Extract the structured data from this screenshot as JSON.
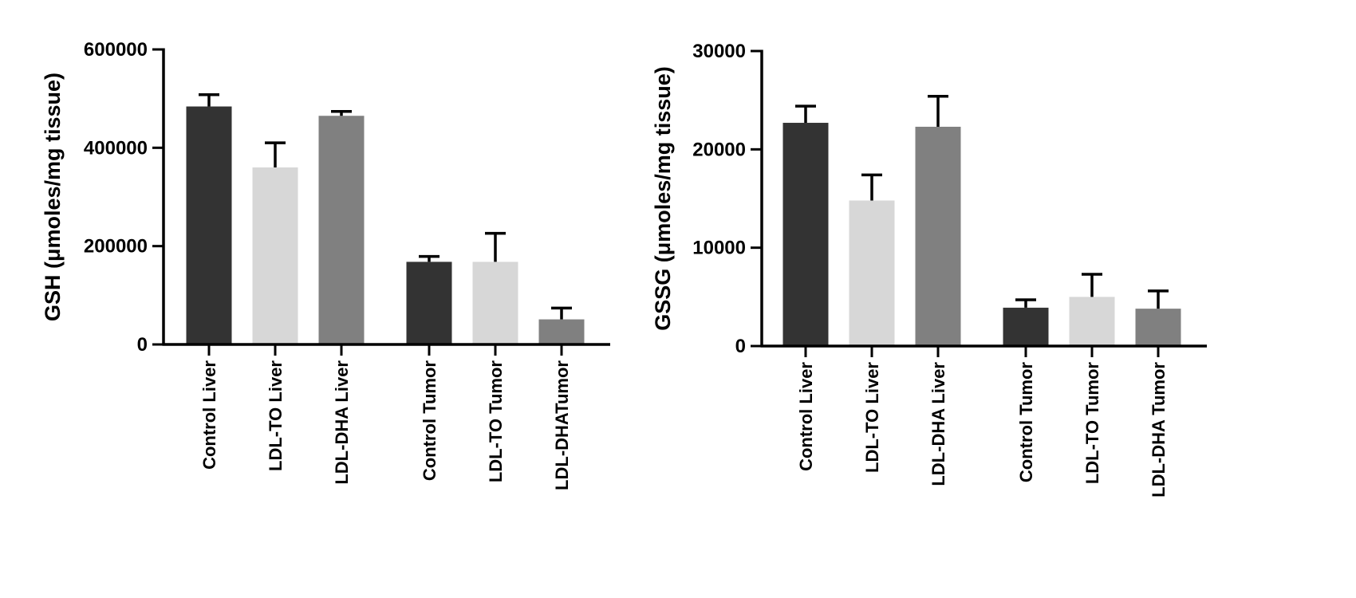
{
  "chart_data": [
    {
      "type": "bar",
      "ylabel": "GSH  (μmoles/mg tissue)",
      "ylim": [
        0,
        600000
      ],
      "yticks": [
        "0",
        "200000",
        "400000",
        "600000"
      ],
      "categories": [
        "Control Liver",
        "LDL-TO Liver",
        "LDL-DHA Liver",
        "Control Tumor",
        "LDL-TO Tumor",
        "LDL-DHATumor"
      ],
      "values": [
        484000,
        360000,
        465000,
        168000,
        168000,
        51000
      ],
      "errors": [
        24000,
        50000,
        9000,
        11000,
        58000,
        23000
      ],
      "colors": [
        "#333333",
        "#d7d7d7",
        "#808080",
        "#333333",
        "#d7d7d7",
        "#808080"
      ],
      "grid": false
    },
    {
      "type": "bar",
      "ylabel": "GSSG  (μmoles/mg tissue)",
      "ylim": [
        0,
        30000
      ],
      "yticks": [
        "0",
        "10000",
        "20000",
        "30000"
      ],
      "categories": [
        "Control Liver",
        "LDL-TO Liver",
        "LDL-DHA Liver",
        "Control Tumor",
        "LDL-TO Tumor",
        "LDL-DHA Tumor"
      ],
      "values": [
        22700,
        14800,
        22300,
        3900,
        5000,
        3800
      ],
      "errors": [
        1700,
        2600,
        3100,
        800,
        2300,
        1800
      ],
      "colors": [
        "#333333",
        "#d7d7d7",
        "#808080",
        "#333333",
        "#d7d7d7",
        "#808080"
      ],
      "grid": false
    }
  ]
}
